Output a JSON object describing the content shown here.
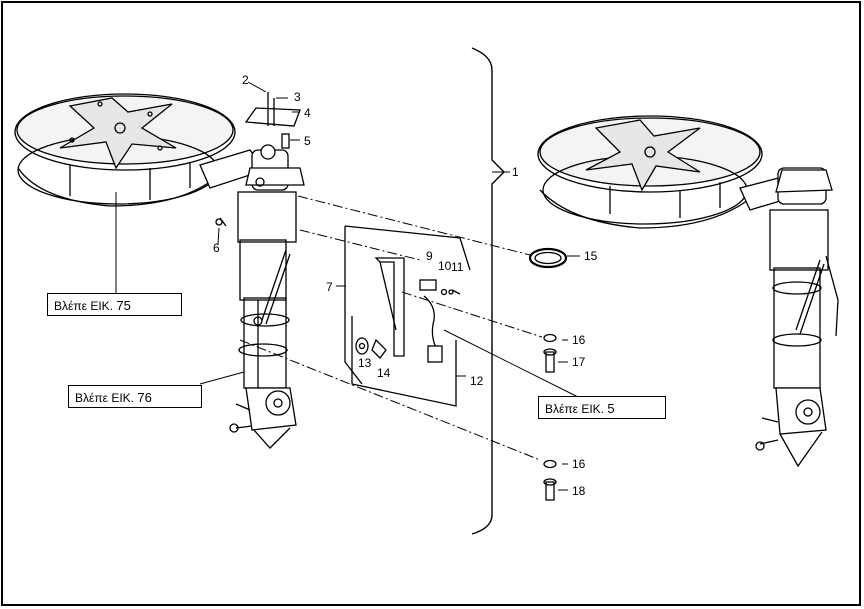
{
  "callouts": [
    "1",
    "2",
    "3",
    "4",
    "5",
    "6",
    "7",
    "9",
    "10",
    "11",
    "12",
    "13",
    "14",
    "15",
    "16",
    "17",
    "16",
    "18"
  ],
  "references": [
    {
      "text": "Βλέπε ΕΙΚ.",
      "num": "75"
    },
    {
      "text": "Βλέπε ΕΙΚ.",
      "num": "76"
    },
    {
      "text": "Βλέπε ΕΙΚ.",
      "num": "5"
    }
  ],
  "colors": {
    "ink": "#000000",
    "paper": "#ffffff",
    "shade": "#dcdcdc"
  }
}
